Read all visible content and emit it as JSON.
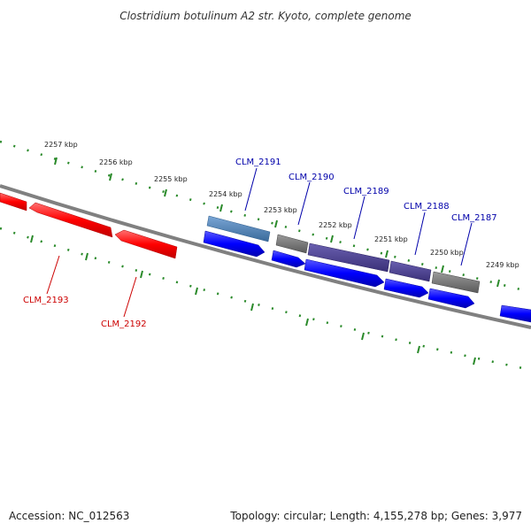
{
  "title": "Clostridium botulinum A2 str. Kyoto, complete genome",
  "footer": {
    "accession": "Accession: NC_012563",
    "summary": "Topology: circular; Length: 4,155,278 bp; Genes: 3,977"
  },
  "ruler": {
    "tick_labels": [
      "2257 kbp",
      "2256 kbp",
      "2255 kbp",
      "2254 kbp",
      "2253 kbp",
      "2252 kbp",
      "2251 kbp",
      "2250 kbp",
      "2249 kbp"
    ],
    "tick_color": "#2a8a2a"
  },
  "colors": {
    "backbone": "#808080",
    "red_gene": "#ff0000",
    "blue_gene": "#0000ff",
    "grey_gene": "#7a7a7a",
    "purple_gene": "#4a4090",
    "steel_gene": "#4f84b8",
    "red_label": "#cc0000",
    "blue_label": "#0000aa"
  },
  "gene_labels": {
    "red": [
      "CLM_2193",
      "CLM_2192"
    ],
    "blue": [
      "CLM_2191",
      "CLM_2190",
      "CLM_2189",
      "CLM_2188",
      "CLM_2187"
    ]
  }
}
